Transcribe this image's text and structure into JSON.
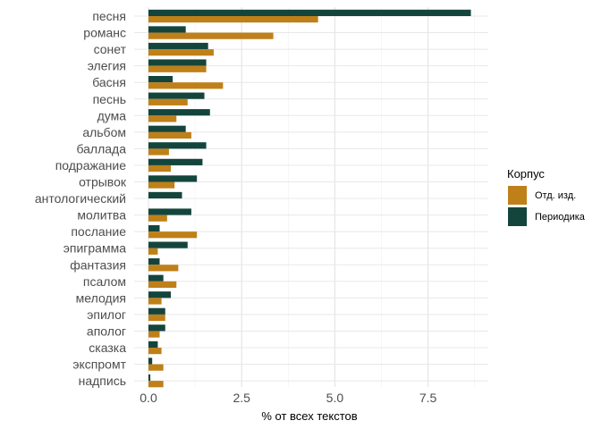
{
  "chart_data": {
    "type": "bar",
    "orientation": "horizontal",
    "xlabel": "% от всех текстов",
    "ylabel": "",
    "xlim": [
      -0.2,
      8.85
    ],
    "xticks": [
      0.0,
      2.5,
      5.0,
      7.5
    ],
    "xtick_labels": [
      "0.0",
      "2.5",
      "5.0",
      "7.5"
    ],
    "grid": true,
    "legend_title": "Корпус",
    "legend_position": "right",
    "categories": [
      "песня",
      "романс",
      "сонет",
      "элегия",
      "басня",
      "песнь",
      "дума",
      "альбом",
      "баллада",
      "подражание",
      "отрывок",
      "антологический",
      "молитва",
      "послание",
      "эпиграмма",
      "фантазия",
      "псалом",
      "мелодия",
      "эпилог",
      "аполог",
      "сказка",
      "экспромт",
      "надпись"
    ],
    "series": [
      {
        "name": "Периодика",
        "color": "#14453d",
        "values": [
          8.65,
          1.0,
          1.6,
          1.55,
          0.65,
          1.5,
          1.65,
          1.0,
          1.55,
          1.45,
          1.3,
          0.9,
          1.15,
          0.3,
          1.05,
          0.3,
          0.4,
          0.6,
          0.45,
          0.45,
          0.25,
          0.1,
          0.05
        ]
      },
      {
        "name": "Отд. изд.",
        "color": "#bf8019",
        "values": [
          4.55,
          3.35,
          1.75,
          1.55,
          2.0,
          1.05,
          0.75,
          1.15,
          0.55,
          0.6,
          0.7,
          0.0,
          0.5,
          1.3,
          0.25,
          0.8,
          0.75,
          0.35,
          0.45,
          0.3,
          0.35,
          0.4,
          0.4
        ]
      }
    ],
    "legend_order": [
      "Отд. изд.",
      "Периодика"
    ]
  }
}
